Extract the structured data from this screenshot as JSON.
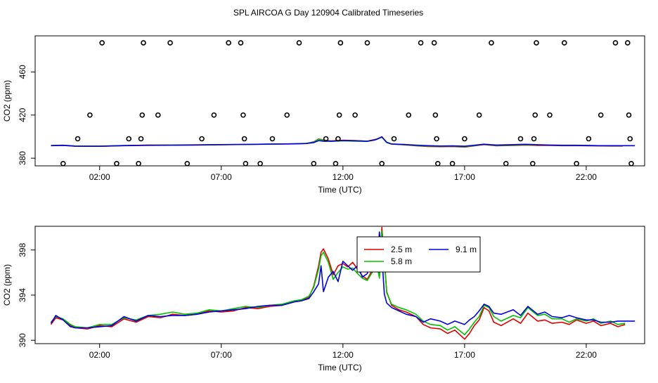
{
  "title": "SPL AIRCOA G  Day 120904  Calibrated Timeseries",
  "colors": {
    "red": "#e00000",
    "green": "#00c000",
    "blue": "#0000e0",
    "black": "#000000"
  },
  "chart_data": [
    {
      "type": "scatter",
      "xlabel": "Time (UTC)",
      "ylabel": "CO2 (ppm)",
      "x_ticks": [
        {
          "value": 2,
          "label": "02:00"
        },
        {
          "value": 7,
          "label": "07:00"
        },
        {
          "value": 12,
          "label": "12:00"
        },
        {
          "value": 17,
          "label": "17:00"
        },
        {
          "value": 22,
          "label": "22:00"
        }
      ],
      "y_ticks": [
        {
          "value": 380,
          "label": "380"
        },
        {
          "value": 420,
          "label": "420"
        },
        {
          "value": 460,
          "label": "460"
        }
      ],
      "xlim": [
        -0.65,
        24.4
      ],
      "ylim": [
        372.9,
        493.5
      ],
      "points": [
        [
          0.5,
          375
        ],
        [
          1.1,
          398
        ],
        [
          1.6,
          420
        ],
        [
          2.1,
          487
        ],
        [
          2.7,
          375
        ],
        [
          3.2,
          398
        ],
        [
          3.6,
          375
        ],
        [
          3.7,
          398
        ],
        [
          3.75,
          420
        ],
        [
          3.8,
          487
        ],
        [
          4.4,
          420
        ],
        [
          4.9,
          487
        ],
        [
          5.6,
          375
        ],
        [
          6.2,
          398
        ],
        [
          6.7,
          420
        ],
        [
          7.3,
          487
        ],
        [
          7.8,
          487
        ],
        [
          7.9,
          420
        ],
        [
          7.95,
          398
        ],
        [
          8.0,
          375
        ],
        [
          8.6,
          375
        ],
        [
          9.1,
          398
        ],
        [
          9.7,
          420
        ],
        [
          10.2,
          487
        ],
        [
          10.8,
          375
        ],
        [
          11.3,
          398
        ],
        [
          11.7,
          375
        ],
        [
          11.8,
          398
        ],
        [
          11.85,
          420
        ],
        [
          11.9,
          487
        ],
        [
          12.5,
          420
        ],
        [
          13.0,
          487
        ],
        [
          13.6,
          375
        ],
        [
          14.1,
          398
        ],
        [
          14.7,
          420
        ],
        [
          15.2,
          487
        ],
        [
          15.75,
          487
        ],
        [
          15.8,
          420
        ],
        [
          15.85,
          398
        ],
        [
          15.9,
          375
        ],
        [
          16.5,
          375
        ],
        [
          17.0,
          398
        ],
        [
          17.6,
          420
        ],
        [
          18.1,
          487
        ],
        [
          18.7,
          375
        ],
        [
          19.3,
          398
        ],
        [
          19.8,
          375
        ],
        [
          19.85,
          398
        ],
        [
          19.9,
          420
        ],
        [
          19.95,
          487
        ],
        [
          20.5,
          420
        ],
        [
          21.1,
          487
        ],
        [
          21.6,
          375
        ],
        [
          22.1,
          398
        ],
        [
          22.6,
          420
        ],
        [
          23.2,
          487
        ],
        [
          23.7,
          487
        ],
        [
          23.75,
          420
        ],
        [
          23.8,
          398
        ],
        [
          23.85,
          375
        ]
      ],
      "series": [
        {
          "color": "red",
          "x": [
            0,
            0.5,
            1,
            2,
            3,
            4,
            5,
            6,
            7,
            8,
            9,
            10,
            10.5,
            10.8,
            11,
            11.2,
            11.5,
            12,
            12.5,
            13,
            13.4,
            13.6,
            13.8,
            14,
            14.5,
            15,
            15.5,
            16,
            16.5,
            17,
            17.3,
            17.8,
            18.3,
            19,
            19.5,
            20,
            20.5,
            21,
            21.5,
            22,
            22.5,
            23,
            23.5
          ],
          "y": [
            391.6,
            391.9,
            391.1,
            391.0,
            391.6,
            391.9,
            392.0,
            392.2,
            392.5,
            392.7,
            393.0,
            393.3,
            393.6,
            395.2,
            397.9,
            396.8,
            396.0,
            396.7,
            396.3,
            395.8,
            397.8,
            399.9,
            394.5,
            393.1,
            392.4,
            391.5,
            390.9,
            390.7,
            390.9,
            390.3,
            391.2,
            392.6,
            391.5,
            391.8,
            392.1,
            391.9,
            391.8,
            391.6,
            391.7,
            391.5,
            391.4,
            391.3,
            391.3
          ]
        },
        {
          "color": "green",
          "x": [
            0,
            0.5,
            1,
            2,
            3,
            4,
            5,
            6,
            7,
            8,
            9,
            10,
            10.5,
            10.8,
            11,
            11.2,
            11.5,
            12,
            12.5,
            13,
            13.4,
            13.6,
            13.8,
            14,
            14.5,
            15,
            15.5,
            16,
            16.5,
            17,
            17.3,
            17.8,
            18.3,
            19,
            19.5,
            20,
            20.5,
            21,
            21.5,
            22,
            22.5,
            23,
            23.5
          ],
          "y": [
            391.8,
            392.0,
            391.3,
            391.1,
            391.8,
            392.1,
            392.2,
            392.3,
            392.6,
            392.8,
            393.1,
            393.4,
            393.7,
            395.0,
            397.6,
            396.6,
            395.6,
            396.1,
            395.8,
            395.6,
            397.4,
            399.6,
            394.4,
            393.2,
            392.6,
            391.8,
            391.2,
            391.0,
            391.2,
            390.6,
            391.5,
            392.8,
            391.9,
            392.1,
            392.5,
            392.3,
            392.1,
            391.9,
            391.9,
            391.8,
            391.6,
            391.5,
            391.5
          ]
        },
        {
          "color": "blue",
          "x": [
            0,
            0.5,
            1,
            2,
            3,
            4,
            5,
            6,
            7,
            8,
            9,
            10,
            10.5,
            10.8,
            11,
            11.2,
            11.5,
            12,
            12.5,
            13,
            13.3,
            13.6,
            13.8,
            14,
            14.5,
            15,
            15.5,
            16,
            16.5,
            17,
            17.3,
            17.8,
            18.3,
            19,
            19.5,
            20,
            20.5,
            21,
            21.5,
            22,
            22.5,
            23,
            24
          ],
          "y": [
            391.7,
            392.0,
            391.2,
            391.1,
            391.7,
            392.1,
            392.1,
            392.3,
            392.6,
            392.8,
            393.1,
            393.3,
            393.6,
            394.5,
            396.3,
            395.8,
            395.7,
            396.4,
            396.2,
            395.8,
            396.8,
            399.7,
            394.8,
            393.2,
            392.7,
            392.1,
            391.6,
            391.3,
            391.4,
            391.1,
            391.8,
            393.0,
            392.2,
            392.6,
            392.9,
            392.5,
            392.2,
            392.0,
            392.0,
            391.9,
            391.6,
            391.6,
            391.6
          ]
        }
      ]
    },
    {
      "type": "line",
      "xlabel": "Time (UTC)",
      "ylabel": "CO2 (ppm)",
      "x_ticks": [
        {
          "value": 2,
          "label": "02:00"
        },
        {
          "value": 7,
          "label": "07:00"
        },
        {
          "value": 12,
          "label": "12:00"
        },
        {
          "value": 17,
          "label": "17:00"
        },
        {
          "value": 22,
          "label": "22:00"
        }
      ],
      "y_ticks": [
        {
          "value": 390,
          "label": "390"
        },
        {
          "value": 394,
          "label": "394"
        },
        {
          "value": 398,
          "label": "398"
        }
      ],
      "xlim": [
        -0.65,
        24.4
      ],
      "ylim": [
        389.7,
        400.1
      ],
      "legend": {
        "position": "top-center",
        "entries": [
          {
            "label": "2.5 m",
            "color": "red"
          },
          {
            "label": "5.8 m",
            "color": "green"
          },
          {
            "label": "9.1 m",
            "color": "blue"
          }
        ]
      },
      "series": [
        {
          "name": "2.5 m",
          "color": "red",
          "x": [
            0,
            0.2,
            0.5,
            0.8,
            1,
            1.5,
            2,
            2.5,
            3,
            3.5,
            4,
            4.5,
            5,
            5.5,
            6,
            6.5,
            7,
            7.5,
            8,
            8.5,
            9,
            9.5,
            10,
            10.3,
            10.6,
            10.8,
            11,
            11.1,
            11.2,
            11.4,
            11.6,
            11.8,
            12,
            12.2,
            12.4,
            12.6,
            12.8,
            13,
            13.2,
            13.4,
            13.5,
            13.6,
            13.7,
            13.8,
            14,
            14.3,
            14.6,
            15,
            15.3,
            15.6,
            16,
            16.3,
            16.6,
            17,
            17.2,
            17.4,
            17.6,
            17.8,
            18,
            18.2,
            18.5,
            19,
            19.3,
            19.6,
            20,
            20.3,
            20.6,
            21,
            21.3,
            21.6,
            22,
            22.3,
            22.6,
            23,
            23.3,
            23.6
          ],
          "y": [
            391.4,
            392.0,
            391.8,
            391.3,
            391.1,
            391.0,
            391.3,
            391.2,
            391.9,
            391.6,
            392.1,
            392.0,
            392.3,
            392.2,
            392.3,
            392.6,
            392.5,
            392.6,
            392.9,
            392.8,
            393.0,
            393.1,
            393.4,
            393.5,
            393.8,
            394.8,
            396.6,
            397.8,
            398.1,
            397.2,
            395.8,
            396.6,
            396.8,
            396.5,
            396.9,
            396.3,
            395.7,
            395.4,
            396.2,
            397.0,
            395.7,
            400.0,
            397.2,
            394.3,
            393.1,
            392.7,
            392.5,
            392.1,
            391.4,
            391.1,
            391.0,
            390.6,
            390.9,
            390.1,
            390.6,
            391.3,
            391.8,
            392.9,
            392.6,
            391.6,
            391.3,
            391.9,
            391.5,
            392.4,
            391.7,
            391.8,
            391.5,
            391.6,
            391.4,
            391.8,
            391.5,
            391.7,
            391.3,
            391.5,
            391.2,
            391.4
          ]
        },
        {
          "name": "5.8 m",
          "color": "green",
          "x": [
            0,
            0.2,
            0.5,
            0.8,
            1,
            1.5,
            2,
            2.5,
            3,
            3.5,
            4,
            4.5,
            5,
            5.5,
            6,
            6.5,
            7,
            7.5,
            8,
            8.5,
            9,
            9.5,
            10,
            10.3,
            10.6,
            10.8,
            11,
            11.1,
            11.2,
            11.4,
            11.6,
            11.8,
            12,
            12.2,
            12.4,
            12.6,
            12.8,
            13,
            13.2,
            13.4,
            13.5,
            13.6,
            13.7,
            13.8,
            14,
            14.3,
            14.6,
            15,
            15.3,
            15.6,
            16,
            16.3,
            16.6,
            17,
            17.2,
            17.4,
            17.6,
            17.8,
            18,
            18.2,
            18.5,
            19,
            19.3,
            19.6,
            20,
            20.3,
            20.6,
            21,
            21.3,
            21.6,
            22,
            22.3,
            22.6,
            23,
            23.3,
            23.6
          ],
          "y": [
            391.6,
            392.1,
            391.9,
            391.4,
            391.2,
            391.1,
            391.4,
            391.4,
            392.0,
            391.8,
            392.2,
            392.3,
            392.5,
            392.3,
            392.4,
            392.7,
            392.6,
            392.8,
            393.0,
            392.9,
            393.1,
            393.2,
            393.5,
            393.6,
            393.9,
            394.7,
            396.3,
            397.5,
            397.8,
            396.9,
            395.4,
            396.0,
            396.5,
            396.3,
            396.4,
            395.9,
            395.5,
            395.3,
            396.0,
            396.7,
            395.5,
            399.7,
            397.0,
            394.2,
            393.2,
            392.9,
            392.7,
            392.3,
            391.7,
            391.4,
            391.3,
            390.9,
            391.2,
            390.5,
            391.0,
            391.6,
            392.1,
            393.1,
            392.9,
            392.1,
            391.7,
            392.2,
            392.0,
            392.9,
            392.2,
            392.3,
            391.9,
            391.9,
            391.6,
            391.9,
            391.7,
            391.9,
            391.5,
            391.7,
            391.4,
            391.5
          ]
        },
        {
          "name": "9.1 m",
          "color": "blue",
          "x": [
            0,
            0.2,
            0.5,
            0.8,
            1,
            1.5,
            2,
            2.5,
            3,
            3.5,
            4,
            4.5,
            5,
            5.5,
            6,
            6.5,
            7,
            7.5,
            8,
            8.5,
            9,
            9.5,
            10,
            10.3,
            10.6,
            10.8,
            11,
            11.1,
            11.2,
            11.4,
            11.6,
            11.8,
            12,
            12.2,
            12.4,
            12.6,
            12.8,
            13,
            13.2,
            13.4,
            13.5,
            13.6,
            13.7,
            13.8,
            14,
            14.3,
            14.6,
            15,
            15.3,
            15.6,
            16,
            16.3,
            16.6,
            17,
            17.2,
            17.4,
            17.6,
            17.8,
            18,
            18.2,
            18.5,
            19,
            19.3,
            19.6,
            20,
            20.3,
            20.6,
            21,
            21.3,
            21.6,
            22,
            22.3,
            22.6,
            23,
            23.3,
            23.6,
            24
          ],
          "y": [
            391.5,
            392.2,
            391.8,
            391.2,
            391.1,
            391.1,
            391.2,
            391.3,
            392.1,
            391.7,
            392.2,
            392.1,
            392.2,
            392.2,
            392.3,
            392.5,
            392.6,
            392.7,
            392.8,
            393.0,
            393.1,
            393.1,
            393.4,
            393.5,
            393.7,
            394.3,
            395.0,
            396.6,
            394.3,
            395.6,
            396.1,
            395.2,
            397.0,
            396.6,
            396.2,
            396.6,
            395.6,
            395.9,
            397.9,
            396.1,
            399.6,
            397.5,
            394.1,
            393.3,
            392.9,
            392.6,
            392.3,
            392.1,
            391.6,
            391.9,
            391.7,
            391.4,
            391.7,
            391.4,
            391.8,
            392.1,
            392.6,
            393.2,
            393.0,
            392.4,
            392.3,
            392.7,
            392.2,
            393.0,
            392.3,
            392.5,
            392.1,
            392.0,
            392.2,
            392.0,
            391.8,
            391.8,
            391.6,
            391.6,
            391.7,
            391.7,
            391.7
          ]
        }
      ]
    }
  ]
}
